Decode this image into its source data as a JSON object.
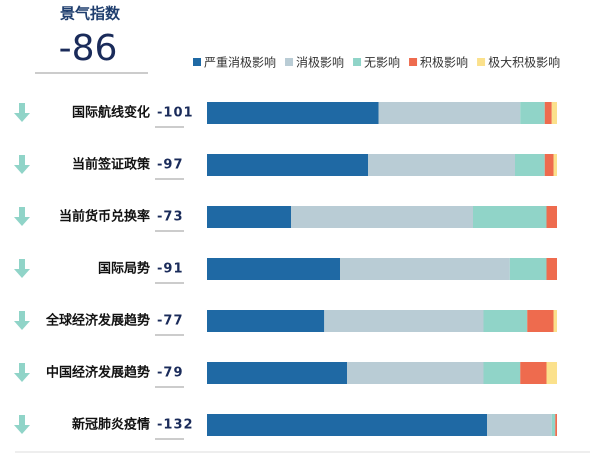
{
  "header": {
    "title": "景气指数",
    "index": -86
  },
  "chart_data": {
    "type": "bar",
    "orientation": "horizontal",
    "stacked": true,
    "categories": [
      "国际航线变化",
      "当前签证政策",
      "当前货币兑换率",
      "国际局势",
      "全球经济发展趋势",
      "中国经济发展趋势",
      "新冠肺炎疫情"
    ],
    "index_values": [
      -101,
      -97,
      -73,
      -91,
      -77,
      -79,
      -132
    ],
    "xlim": [
      0,
      100
    ],
    "series": [
      {
        "name": "严重消极影响",
        "color": "#1f69a4",
        "values": [
          49,
          46,
          24,
          38,
          33.5,
          40,
          80
        ]
      },
      {
        "name": "消极影响",
        "color": "#b9ccd5",
        "values": [
          40.5,
          42,
          52,
          48.5,
          45.5,
          39,
          18.5
        ]
      },
      {
        "name": "无影响",
        "color": "#90d4c8",
        "values": [
          7,
          8.5,
          21,
          10.5,
          12.5,
          10.5,
          1
        ]
      },
      {
        "name": "积极影响",
        "color": "#ee6b4e",
        "values": [
          2,
          2.5,
          3,
          3,
          7.5,
          7.5,
          0.5
        ]
      },
      {
        "name": "极大积极影响",
        "color": "#fbe18c",
        "values": [
          1.5,
          1,
          0,
          0,
          1,
          3,
          0
        ]
      }
    ]
  }
}
